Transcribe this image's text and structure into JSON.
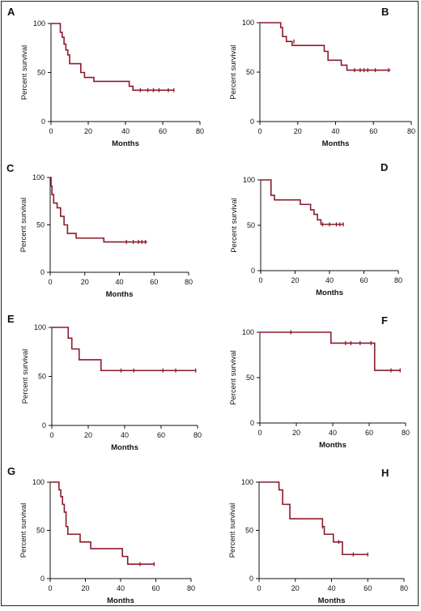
{
  "curve_color": "#8b1a2b",
  "chart_data": [
    {
      "panel": "A",
      "type": "line",
      "xlabel": "Months",
      "ylabel": "Percent survival",
      "xlim": [
        0,
        80
      ],
      "ylim": [
        0,
        100
      ],
      "xticks": [
        "0",
        "20",
        "40",
        "60",
        "80"
      ],
      "yticks": [
        "0",
        "50",
        "100"
      ],
      "x": [
        0,
        5,
        6,
        7,
        8,
        9,
        10,
        12,
        16,
        18,
        23,
        42,
        44,
        66
      ],
      "y": [
        100,
        91,
        86,
        79,
        73,
        68,
        59,
        59,
        50,
        45,
        41,
        36,
        32,
        32
      ],
      "censored": [
        [
          48,
          32
        ],
        [
          52,
          32
        ],
        [
          55,
          32
        ],
        [
          58,
          32
        ],
        [
          63,
          32
        ],
        [
          66,
          32
        ]
      ]
    },
    {
      "panel": "B",
      "type": "line",
      "xlabel": "Months",
      "ylabel": "Percent survival",
      "xlim": [
        0,
        80
      ],
      "ylim": [
        0,
        100
      ],
      "xticks": [
        "0",
        "20",
        "40",
        "60",
        "80"
      ],
      "yticks": [
        "0",
        "50",
        "100"
      ],
      "x": [
        0,
        11,
        12,
        14,
        17,
        19,
        34,
        36,
        37,
        43,
        46,
        69
      ],
      "y": [
        100,
        95,
        86,
        81,
        77,
        77,
        71,
        62,
        62,
        57,
        52,
        52
      ],
      "censored": [
        [
          18,
          81
        ],
        [
          50,
          52
        ],
        [
          53,
          52
        ],
        [
          55,
          52
        ],
        [
          57,
          52
        ],
        [
          61,
          52
        ],
        [
          68,
          52
        ]
      ]
    },
    {
      "panel": "C",
      "type": "line",
      "xlabel": "Months",
      "ylabel": "Percent survival",
      "xlim": [
        0,
        80
      ],
      "ylim": [
        0,
        100
      ],
      "xticks": [
        "0",
        "20",
        "40",
        "60",
        "80"
      ],
      "yticks": [
        "0",
        "50",
        "100"
      ],
      "x": [
        0,
        0.5,
        1,
        2,
        4,
        6,
        8,
        10,
        15,
        31,
        56
      ],
      "y": [
        100,
        91,
        82,
        73,
        68,
        59,
        50,
        41,
        36,
        32,
        32
      ],
      "censored": [
        [
          44,
          32
        ],
        [
          48,
          32
        ],
        [
          51,
          32
        ],
        [
          53,
          32
        ],
        [
          55,
          32
        ]
      ]
    },
    {
      "panel": "D",
      "type": "line",
      "xlabel": "Months",
      "ylabel": "Percent survival",
      "xlim": [
        0,
        80
      ],
      "ylim": [
        0,
        100
      ],
      "xticks": [
        "0",
        "20",
        "40",
        "60",
        "80"
      ],
      "yticks": [
        "0",
        "50",
        "100"
      ],
      "x": [
        0,
        6,
        8,
        23,
        29,
        31,
        33,
        35,
        48
      ],
      "y": [
        100,
        83,
        78,
        73,
        67,
        62,
        56,
        51,
        51
      ],
      "censored": [
        [
          36,
          51
        ],
        [
          40,
          51
        ],
        [
          44,
          51
        ],
        [
          46,
          51
        ],
        [
          48,
          51
        ]
      ]
    },
    {
      "panel": "E",
      "type": "line",
      "xlabel": "Months",
      "ylabel": "Percent survival",
      "xlim": [
        0,
        80
      ],
      "ylim": [
        0,
        100
      ],
      "xticks": [
        "0",
        "20",
        "40",
        "60",
        "80"
      ],
      "yticks": [
        "0",
        "50",
        "100"
      ],
      "x": [
        0,
        9,
        11,
        15,
        27,
        79
      ],
      "y": [
        100,
        89,
        78,
        67,
        56,
        56
      ],
      "censored": [
        [
          38,
          56
        ],
        [
          45,
          56
        ],
        [
          61,
          56
        ],
        [
          68,
          56
        ],
        [
          79,
          56
        ]
      ]
    },
    {
      "panel": "F",
      "type": "line",
      "xlabel": "Months",
      "ylabel": "Percent survival",
      "xlim": [
        0,
        80
      ],
      "ylim": [
        0,
        100
      ],
      "xticks": [
        "0",
        "20",
        "40",
        "60",
        "80"
      ],
      "yticks": [
        "0",
        "50",
        "100"
      ],
      "x": [
        0,
        39,
        63,
        77
      ],
      "y": [
        100,
        88,
        58,
        58
      ],
      "censored": [
        [
          17,
          100
        ],
        [
          47,
          88
        ],
        [
          50,
          88
        ],
        [
          55,
          88
        ],
        [
          61,
          88
        ],
        [
          72,
          58
        ],
        [
          77,
          58
        ]
      ]
    },
    {
      "panel": "G",
      "type": "line",
      "xlabel": "Months",
      "ylabel": "Percent survival",
      "xlim": [
        0,
        80
      ],
      "ylim": [
        0,
        100
      ],
      "xticks": [
        "0",
        "20",
        "40",
        "60",
        "80"
      ],
      "yticks": [
        "0",
        "50",
        "100"
      ],
      "x": [
        0,
        5,
        6,
        7,
        8,
        9,
        10,
        17,
        23,
        41,
        44,
        59
      ],
      "y": [
        100,
        92,
        85,
        77,
        69,
        54,
        46,
        38,
        31,
        23,
        15,
        15
      ],
      "censored": [
        [
          51,
          15
        ],
        [
          59,
          15
        ]
      ]
    },
    {
      "panel": "H",
      "type": "line",
      "xlabel": "Months",
      "ylabel": "Percent survival",
      "xlim": [
        0,
        80
      ],
      "ylim": [
        0,
        100
      ],
      "xticks": [
        "0",
        "20",
        "40",
        "60",
        "80"
      ],
      "yticks": [
        "0",
        "50",
        "100"
      ],
      "x": [
        0,
        11,
        13,
        17,
        35,
        36,
        41,
        45,
        46,
        60
      ],
      "y": [
        100,
        92,
        77,
        62,
        54,
        46,
        38,
        38,
        25,
        25
      ],
      "censored": [
        [
          35,
          54
        ],
        [
          44,
          38
        ],
        [
          52,
          25
        ],
        [
          60,
          25
        ]
      ]
    }
  ]
}
